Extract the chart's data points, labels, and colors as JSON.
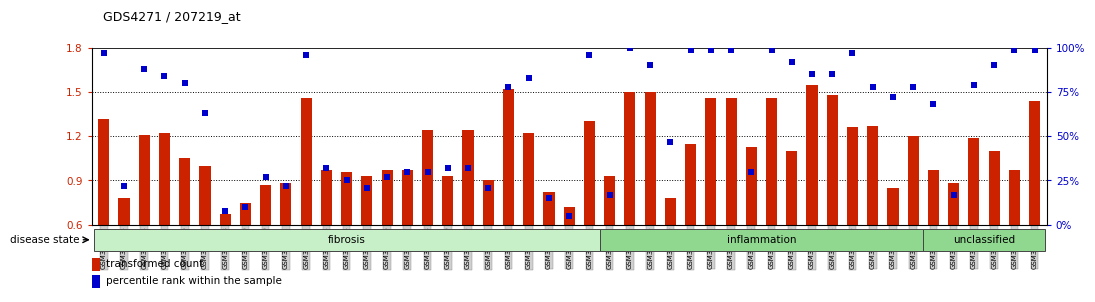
{
  "title": "GDS4271 / 207219_at",
  "samples": [
    "GSM380382",
    "GSM380383",
    "GSM380384",
    "GSM380385",
    "GSM380386",
    "GSM380387",
    "GSM380388",
    "GSM380389",
    "GSM380390",
    "GSM380391",
    "GSM380392",
    "GSM380393",
    "GSM380394",
    "GSM380395",
    "GSM380396",
    "GSM380397",
    "GSM380398",
    "GSM380399",
    "GSM380400",
    "GSM380401",
    "GSM380402",
    "GSM380403",
    "GSM380404",
    "GSM380405",
    "GSM380406",
    "GSM380407",
    "GSM380408",
    "GSM380409",
    "GSM380410",
    "GSM380411",
    "GSM380412",
    "GSM380413",
    "GSM380414",
    "GSM380415",
    "GSM380416",
    "GSM380417",
    "GSM380418",
    "GSM380419",
    "GSM380420",
    "GSM380421",
    "GSM380422",
    "GSM380423",
    "GSM380424",
    "GSM380425",
    "GSM380426",
    "GSM380427",
    "GSM380428"
  ],
  "bar_values": [
    1.32,
    0.78,
    1.21,
    1.22,
    1.05,
    1.0,
    0.67,
    0.75,
    0.87,
    0.88,
    1.46,
    0.97,
    0.96,
    0.93,
    0.97,
    0.97,
    1.24,
    0.93,
    1.24,
    0.9,
    1.52,
    1.22,
    0.82,
    0.72,
    1.3,
    0.93,
    1.5,
    1.5,
    0.78,
    1.15,
    1.46,
    1.46,
    1.13,
    1.46,
    1.1,
    1.55,
    1.48,
    1.26,
    1.27,
    0.85,
    1.2,
    0.97,
    0.88,
    1.19,
    1.1,
    0.97,
    1.44
  ],
  "dot_pct": [
    97,
    22,
    88,
    84,
    80,
    63,
    8,
    10,
    27,
    22,
    96,
    32,
    25,
    21,
    27,
    30,
    30,
    32,
    32,
    21,
    78,
    83,
    15,
    5,
    96,
    17,
    100,
    90,
    47,
    99,
    99,
    99,
    30,
    99,
    92,
    85,
    85,
    97,
    78,
    72,
    78,
    68,
    17,
    79,
    90,
    99,
    99
  ],
  "groups": [
    {
      "label": "fibrosis",
      "start": 0,
      "end": 25,
      "color": "#c8f0c8"
    },
    {
      "label": "inflammation",
      "start": 25,
      "end": 41,
      "color": "#90d890"
    },
    {
      "label": "unclassified",
      "start": 41,
      "end": 47,
      "color": "#90d890"
    }
  ],
  "bar_color": "#cc2200",
  "dot_color": "#0000cc",
  "ylim_left": [
    0.6,
    1.8
  ],
  "ylim_right": [
    0,
    100
  ],
  "yticks_left": [
    0.6,
    0.9,
    1.2,
    1.5,
    1.8
  ],
  "yticks_right": [
    0,
    25,
    50,
    75,
    100
  ],
  "dotted_lines": [
    0.9,
    1.2,
    1.5
  ],
  "legend_items": [
    "transformed count",
    "percentile rank within the sample"
  ],
  "disease_state_label": "disease state"
}
